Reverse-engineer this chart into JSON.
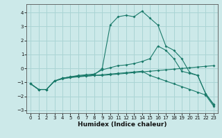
{
  "xlabel": "Humidex (Indice chaleur)",
  "xlim": [
    -0.5,
    23.5
  ],
  "ylim": [
    -3.2,
    4.6
  ],
  "yticks": [
    -3,
    -2,
    -1,
    0,
    1,
    2,
    3,
    4
  ],
  "xticks": [
    0,
    1,
    2,
    3,
    4,
    5,
    6,
    7,
    8,
    9,
    10,
    11,
    12,
    13,
    14,
    15,
    16,
    17,
    18,
    19,
    20,
    21,
    22,
    23
  ],
  "bg_color": "#cce9e9",
  "line_color": "#1a7a6a",
  "grid_color": "#aad4d4",
  "line1_x": [
    0,
    1,
    2,
    3,
    4,
    5,
    6,
    7,
    8,
    9,
    10,
    11,
    12,
    13,
    14,
    15,
    16,
    17,
    18,
    19,
    20,
    21,
    22,
    23
  ],
  "line1_y": [
    -1.1,
    -1.5,
    -1.5,
    -0.9,
    -0.75,
    -0.65,
    -0.55,
    -0.5,
    -0.45,
    0.0,
    3.1,
    3.7,
    3.8,
    3.7,
    4.1,
    3.6,
    3.1,
    1.6,
    1.3,
    0.7,
    -0.3,
    -0.5,
    -1.8,
    -2.6
  ],
  "line2_x": [
    0,
    1,
    2,
    3,
    4,
    5,
    6,
    7,
    8,
    9,
    10,
    11,
    12,
    13,
    14,
    15,
    16,
    17,
    18,
    19,
    20,
    21,
    22,
    23
  ],
  "line2_y": [
    -1.1,
    -1.5,
    -1.5,
    -0.9,
    -0.7,
    -0.6,
    -0.5,
    -0.45,
    -0.4,
    -0.1,
    0.05,
    0.2,
    0.25,
    0.35,
    0.5,
    0.7,
    1.6,
    1.3,
    0.7,
    -0.2,
    -0.35,
    -0.5,
    -1.8,
    -2.55
  ],
  "line3_x": [
    0,
    1,
    2,
    3,
    4,
    5,
    6,
    7,
    8,
    9,
    10,
    11,
    12,
    13,
    14,
    15,
    16,
    17,
    18,
    19,
    20,
    21,
    22,
    23
  ],
  "line3_y": [
    -1.1,
    -1.5,
    -1.5,
    -0.9,
    -0.7,
    -0.65,
    -0.6,
    -0.55,
    -0.5,
    -0.45,
    -0.4,
    -0.35,
    -0.3,
    -0.25,
    -0.2,
    -0.5,
    -0.7,
    -0.9,
    -1.1,
    -1.3,
    -1.5,
    -1.7,
    -1.9,
    -2.7
  ],
  "line4_x": [
    0,
    1,
    2,
    3,
    4,
    5,
    6,
    7,
    8,
    9,
    10,
    11,
    12,
    13,
    14,
    15,
    16,
    17,
    18,
    19,
    20,
    21,
    22,
    23
  ],
  "line4_y": [
    -1.1,
    -1.5,
    -1.5,
    -0.9,
    -0.7,
    -0.6,
    -0.55,
    -0.55,
    -0.5,
    -0.5,
    -0.45,
    -0.4,
    -0.35,
    -0.3,
    -0.25,
    -0.2,
    -0.15,
    -0.1,
    -0.05,
    0.0,
    0.05,
    0.1,
    0.15,
    0.2
  ]
}
